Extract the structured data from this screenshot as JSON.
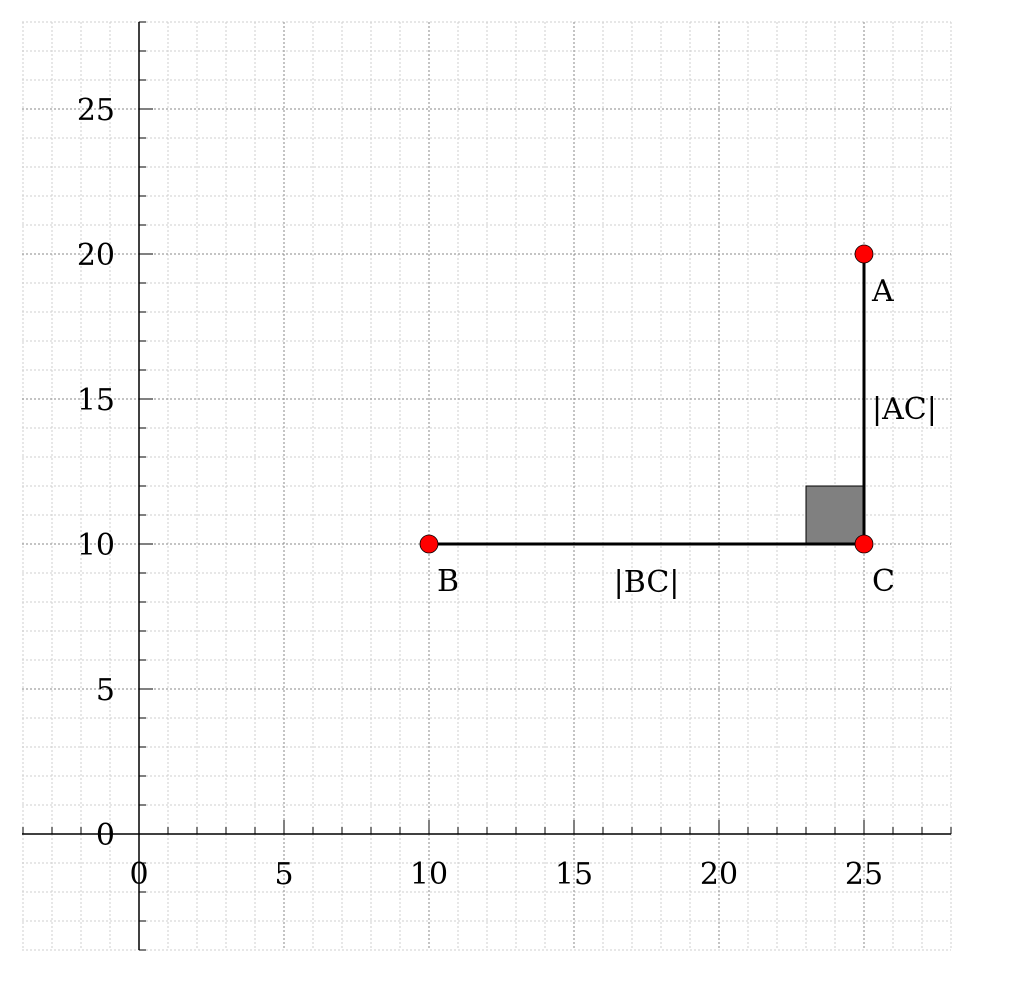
{
  "diagram": {
    "type": "coordinate-geometry",
    "x_ticks": [
      "0",
      "5",
      "10",
      "15",
      "20",
      "25"
    ],
    "y_ticks": [
      "0",
      "5",
      "10",
      "15",
      "20",
      "25"
    ],
    "xlim": [
      -4,
      28
    ],
    "ylim": [
      -4,
      28
    ],
    "major_grid_step": 5,
    "minor_grid_step": 1,
    "points": [
      {
        "label": "A",
        "x": 25,
        "y": 20,
        "color": "#ff0000"
      },
      {
        "label": "B",
        "x": 10,
        "y": 10,
        "color": "#ff0000"
      },
      {
        "label": "C",
        "x": 25,
        "y": 10,
        "color": "#ff0000"
      }
    ],
    "segments": [
      {
        "from": "B",
        "to": "C",
        "label": "|BC|"
      },
      {
        "from": "C",
        "to": "A",
        "label": "|AC|"
      }
    ],
    "right_angle": {
      "vertex": "C",
      "size": 2,
      "fill": "#808080"
    },
    "colors": {
      "point_fill": "#ff0000",
      "segment": "#000000",
      "axis": "#000000",
      "major_grid": "#888888",
      "minor_grid": "#cfcfcf",
      "right_angle_fill": "#808080"
    }
  }
}
